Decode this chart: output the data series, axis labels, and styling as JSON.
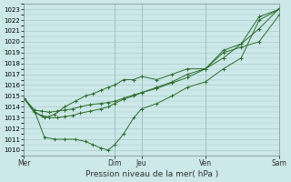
{
  "xlabel": "Pression niveau de la mer( hPa )",
  "background_color": "#cce8e8",
  "grid_color": "#aacccc",
  "line_color": "#2d6e2d",
  "ylim": [
    1009.5,
    1023.5
  ],
  "yticks": [
    1010,
    1011,
    1012,
    1013,
    1014,
    1015,
    1016,
    1017,
    1018,
    1019,
    1020,
    1021,
    1022,
    1023
  ],
  "xlim": [
    0,
    1.0
  ],
  "xtick_labels": [
    "Mer",
    "Dim",
    "Jeu",
    "Ven",
    "Sam"
  ],
  "xtick_positions": [
    0.0,
    0.355,
    0.46,
    0.71,
    1.0
  ],
  "vline_positions": [
    0.0,
    0.355,
    0.46,
    0.71,
    1.0
  ],
  "series": [
    {
      "x": [
        0.0,
        0.04,
        0.07,
        0.1,
        0.13,
        0.16,
        0.19,
        0.22,
        0.26,
        0.3,
        0.33,
        0.355,
        0.39,
        0.43,
        0.46,
        0.52,
        0.58,
        0.64,
        0.71,
        0.78,
        0.85,
        0.92,
        1.0
      ],
      "y": [
        1014.8,
        1013.7,
        1013.6,
        1013.5,
        1013.6,
        1013.7,
        1013.8,
        1014.0,
        1014.2,
        1014.3,
        1014.4,
        1014.5,
        1014.8,
        1015.1,
        1015.3,
        1015.8,
        1016.3,
        1017.0,
        1017.5,
        1018.5,
        1019.8,
        1021.2,
        1023.1
      ]
    },
    {
      "x": [
        0.0,
        0.04,
        0.07,
        0.1,
        0.13,
        0.16,
        0.19,
        0.22,
        0.26,
        0.3,
        0.33,
        0.355,
        0.39,
        0.43,
        0.46,
        0.52,
        0.58,
        0.64,
        0.71,
        0.78,
        0.85,
        0.92,
        1.0
      ],
      "y": [
        1014.8,
        1013.5,
        1013.2,
        1013.0,
        1013.0,
        1013.1,
        1013.2,
        1013.4,
        1013.6,
        1013.8,
        1014.0,
        1014.3,
        1014.7,
        1015.0,
        1015.3,
        1015.7,
        1016.2,
        1016.7,
        1017.5,
        1019.0,
        1019.5,
        1020.0,
        1022.5
      ]
    },
    {
      "x": [
        0.0,
        0.04,
        0.08,
        0.12,
        0.16,
        0.2,
        0.24,
        0.27,
        0.3,
        0.33,
        0.355,
        0.39,
        0.43,
        0.46,
        0.52,
        0.58,
        0.64,
        0.71,
        0.78,
        0.85,
        0.92,
        1.0
      ],
      "y": [
        1014.8,
        1013.7,
        1011.2,
        1011.0,
        1011.0,
        1011.0,
        1010.8,
        1010.5,
        1010.2,
        1010.0,
        1010.5,
        1011.5,
        1013.0,
        1013.8,
        1014.3,
        1015.0,
        1015.8,
        1016.3,
        1017.5,
        1018.5,
        1022.0,
        1023.0
      ]
    },
    {
      "x": [
        0.0,
        0.04,
        0.08,
        0.12,
        0.16,
        0.2,
        0.24,
        0.27,
        0.3,
        0.33,
        0.355,
        0.39,
        0.43,
        0.46,
        0.52,
        0.58,
        0.64,
        0.71,
        0.78,
        0.85,
        0.92,
        1.0
      ],
      "y": [
        1014.8,
        1013.5,
        1013.0,
        1013.3,
        1014.0,
        1014.5,
        1015.0,
        1015.2,
        1015.5,
        1015.8,
        1016.0,
        1016.5,
        1016.5,
        1016.8,
        1016.5,
        1017.0,
        1017.5,
        1017.5,
        1019.2,
        1019.8,
        1022.3,
        1023.0
      ]
    }
  ]
}
